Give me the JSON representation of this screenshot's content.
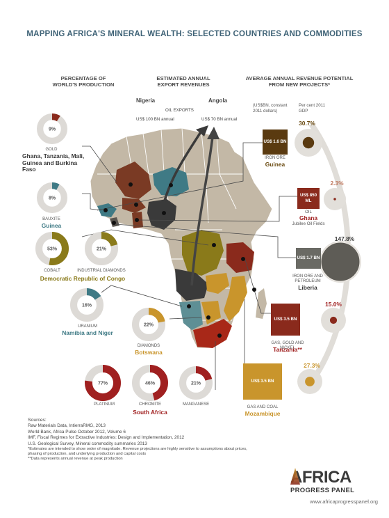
{
  "title": "MAPPING AFRICA'S MINERAL WEALTH: SELECTED COUNTRIES AND COMMODITIES",
  "sections": {
    "production": "PERCENTAGE OF WORLD'S PRODUCTION",
    "exports": "ESTIMATED ANNUAL EXPORT REVENUES",
    "projects": "AVERAGE ANNUAL REVENUE POTENTIAL FROM NEW PROJECTS*"
  },
  "oil_exports": {
    "label": "OIL EXPORTS",
    "nigeria": {
      "name": "Nigeria",
      "value": "US$ 100 BN annual"
    },
    "angola": {
      "name": "Angola",
      "value": "US$ 70 BN annual"
    }
  },
  "projects_units": {
    "left": "(US$BN, constant 2011 dollars)",
    "right": "Per cent 2011 GDP"
  },
  "donuts": [
    {
      "id": "gold",
      "pct": 9,
      "label": "9%",
      "caption": "GOLD",
      "color": "#8a2a1c"
    },
    {
      "id": "bauxite",
      "pct": 8,
      "label": "8%",
      "caption": "BAUXITE",
      "color": "#3f7a85"
    },
    {
      "id": "cobalt",
      "pct": 53,
      "label": "53%",
      "caption": "COBALT",
      "color": "#8a7a1a"
    },
    {
      "id": "industrial-diamonds",
      "pct": 21,
      "label": "21%",
      "caption": "INDUSTRIAL DIAMONDS",
      "color": "#8a7a1a"
    },
    {
      "id": "uranium",
      "pct": 16,
      "label": "16%",
      "caption": "URANIUM",
      "color": "#3f7a85"
    },
    {
      "id": "diamonds",
      "pct": 22,
      "label": "22%",
      "caption": "DIAMONDS",
      "color": "#c9952c"
    },
    {
      "id": "platinum",
      "pct": 77,
      "label": "77%",
      "caption": "PLATINUM",
      "color": "#a02020"
    },
    {
      "id": "chromite",
      "pct": 46,
      "label": "46%",
      "caption": "CHROMITE",
      "color": "#a02020"
    },
    {
      "id": "manganese",
      "pct": 21,
      "label": "21%",
      "caption": "MANGANESE",
      "color": "#a02020"
    }
  ],
  "countries": {
    "gold": "Ghana, Tanzania, Mali, Guinea and Burkina Faso",
    "bauxite": "Guinea",
    "drc": "Democratic Republic of Congo",
    "uranium": "Namibia and Niger",
    "botswana": "Botswana",
    "south_africa": "South Africa"
  },
  "projects": [
    {
      "id": "guinea",
      "box": "US$ 1.6 BN",
      "commodity": "IRON ORE",
      "country": "Guinea",
      "pct": 30.7,
      "pct_label": "30.7%",
      "color": "#5a3a10"
    },
    {
      "id": "ghana",
      "box": "US$ 850 ML",
      "commodity": "OIL",
      "country": "Ghana",
      "extra": "Jubilee Oil Fields",
      "pct": 2.3,
      "pct_label": "2.3%",
      "color": "#8a2a1c"
    },
    {
      "id": "liberia",
      "box": "US$ 1.7 BN",
      "commodity": "IRON ORE AND PETROLEUM",
      "country": "Liberia",
      "pct": 147.8,
      "pct_label": "147.8%",
      "color": "#6a6a64"
    },
    {
      "id": "tanzania",
      "box": "US$ 3.5 BN",
      "commodity": "GAS, GOLD AND NICKEL",
      "country": "Tanzania**",
      "pct": 15.0,
      "pct_label": "15.0%",
      "color": "#8a2a1c"
    },
    {
      "id": "mozambique",
      "box": "US$ 3.5 BN",
      "commodity": "GAS AND COAL",
      "country": "Mozambique",
      "pct": 27.3,
      "pct_label": "27.3%",
      "color": "#c9952c"
    }
  ],
  "sources": {
    "heading": "Sources:",
    "lines": [
      "Raw Materials Data, IntierraRMG, 2013",
      "World Bank, Africa Pulse October 2012, Volume 6",
      "IMF, Fiscal Regimes for Extractive Industries: Design and Implementation, 2012",
      "U.S. Geological Survey, Mineral commodity summaries 2013",
      "*Estimates are intended to show order of magnitude. Revenue projections are highly sensitive to assumptions about prices,",
      "phasing of production, and underlying production and capital costs",
      "**Data represents annual revenue at peak production"
    ]
  },
  "logo": {
    "line1": "AFRICA",
    "line2": "PROGRESS PANEL",
    "url": "www.africaprogresspanel.org"
  },
  "colors": {
    "red": "#a02020",
    "brown": "#8a2a1c",
    "olive": "#8a7a1a",
    "teal": "#3f7a85",
    "gold": "#c9952c",
    "dark": "#3a3a3a",
    "land": "#c3b8a6",
    "ring": "#dddad6"
  }
}
